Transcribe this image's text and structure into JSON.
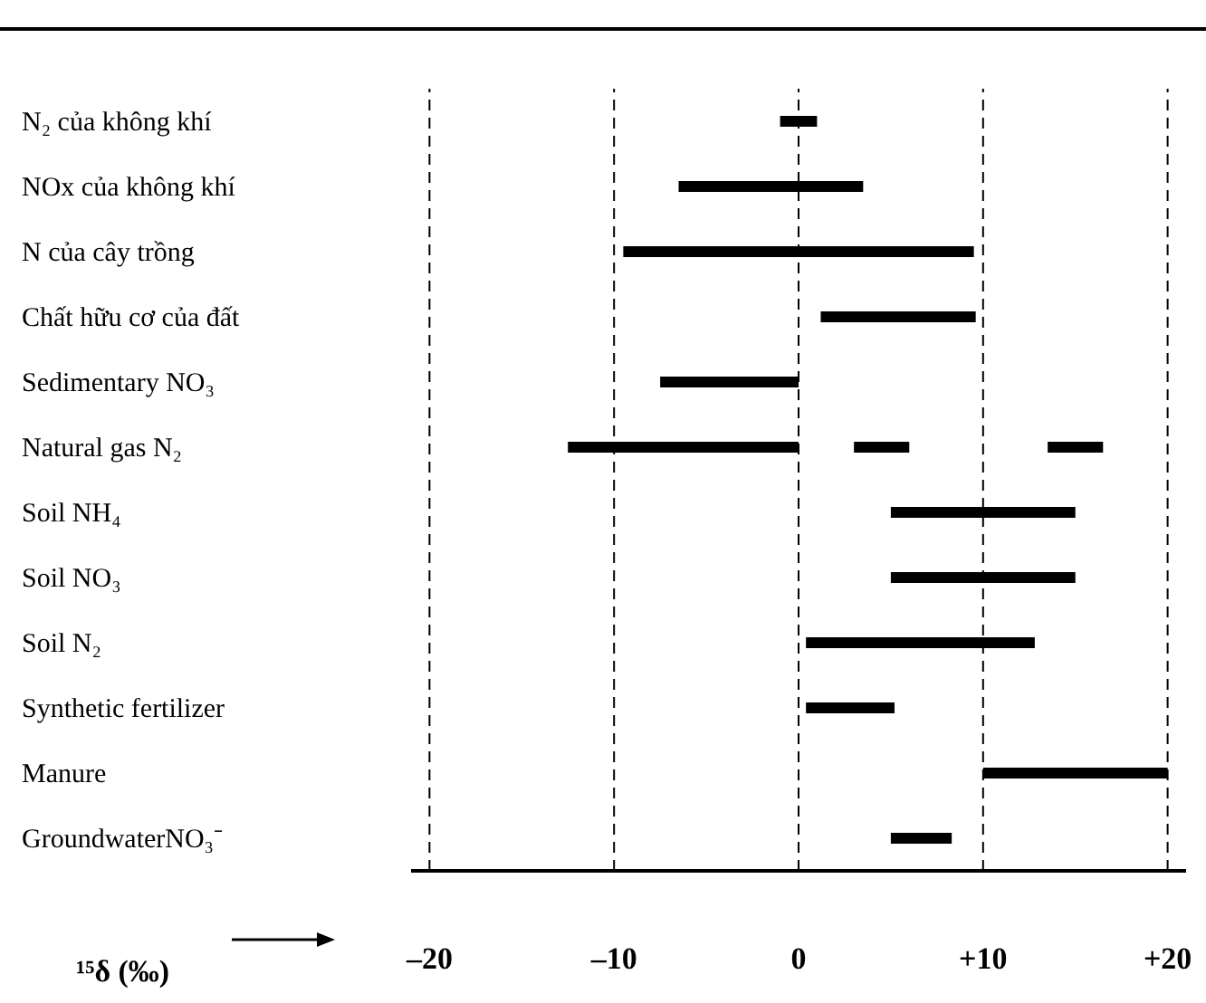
{
  "chart_data": {
    "type": "bar",
    "orientation": "horizontal",
    "xlabel": "¹⁵δ (‰)",
    "categories": [
      "N₂ của không khí",
      "NOx của không khí",
      "N của cây trồng",
      "Chất hữu cơ của đất",
      "Sedimentary NO₃",
      "Natural gas N₂",
      "Soil NH₄",
      "Soil NO₃",
      "Soil N₂",
      "Synthetic fertilizer",
      "Manure",
      "GroundwaterNO₃⁻"
    ],
    "series": [
      {
        "color": "#000000",
        "base": [
          -1,
          -6.5,
          -9.5,
          1.2,
          -7.5,
          -12.5,
          5,
          5,
          0.4,
          0.4,
          10,
          5
        ],
        "values": [
          2,
          10,
          19,
          8.4,
          7.5,
          12.5,
          10,
          10,
          12.4,
          4.8,
          10,
          3.3
        ]
      },
      {
        "color": "#000000",
        "base": [
          null,
          null,
          null,
          null,
          null,
          3,
          null,
          null,
          null,
          null,
          null,
          null
        ],
        "values": [
          null,
          null,
          null,
          null,
          null,
          3,
          null,
          null,
          null,
          null,
          null,
          null
        ]
      },
      {
        "color": "#000000",
        "base": [
          null,
          null,
          null,
          null,
          null,
          13.5,
          null,
          null,
          null,
          null,
          null,
          null
        ],
        "values": [
          null,
          null,
          null,
          null,
          null,
          3,
          null,
          null,
          null,
          null,
          null,
          null
        ]
      }
    ],
    "xlim": [
      -21,
      21
    ],
    "xticks": [
      {
        "value": -20,
        "label": "–20"
      },
      {
        "value": -10,
        "label": "–10"
      },
      0,
      {
        "value": 10,
        "label": "+10"
      },
      {
        "value": 20,
        "label": "+20"
      }
    ],
    "grid": "x",
    "line_style": "dashed",
    "legend": false
  }
}
